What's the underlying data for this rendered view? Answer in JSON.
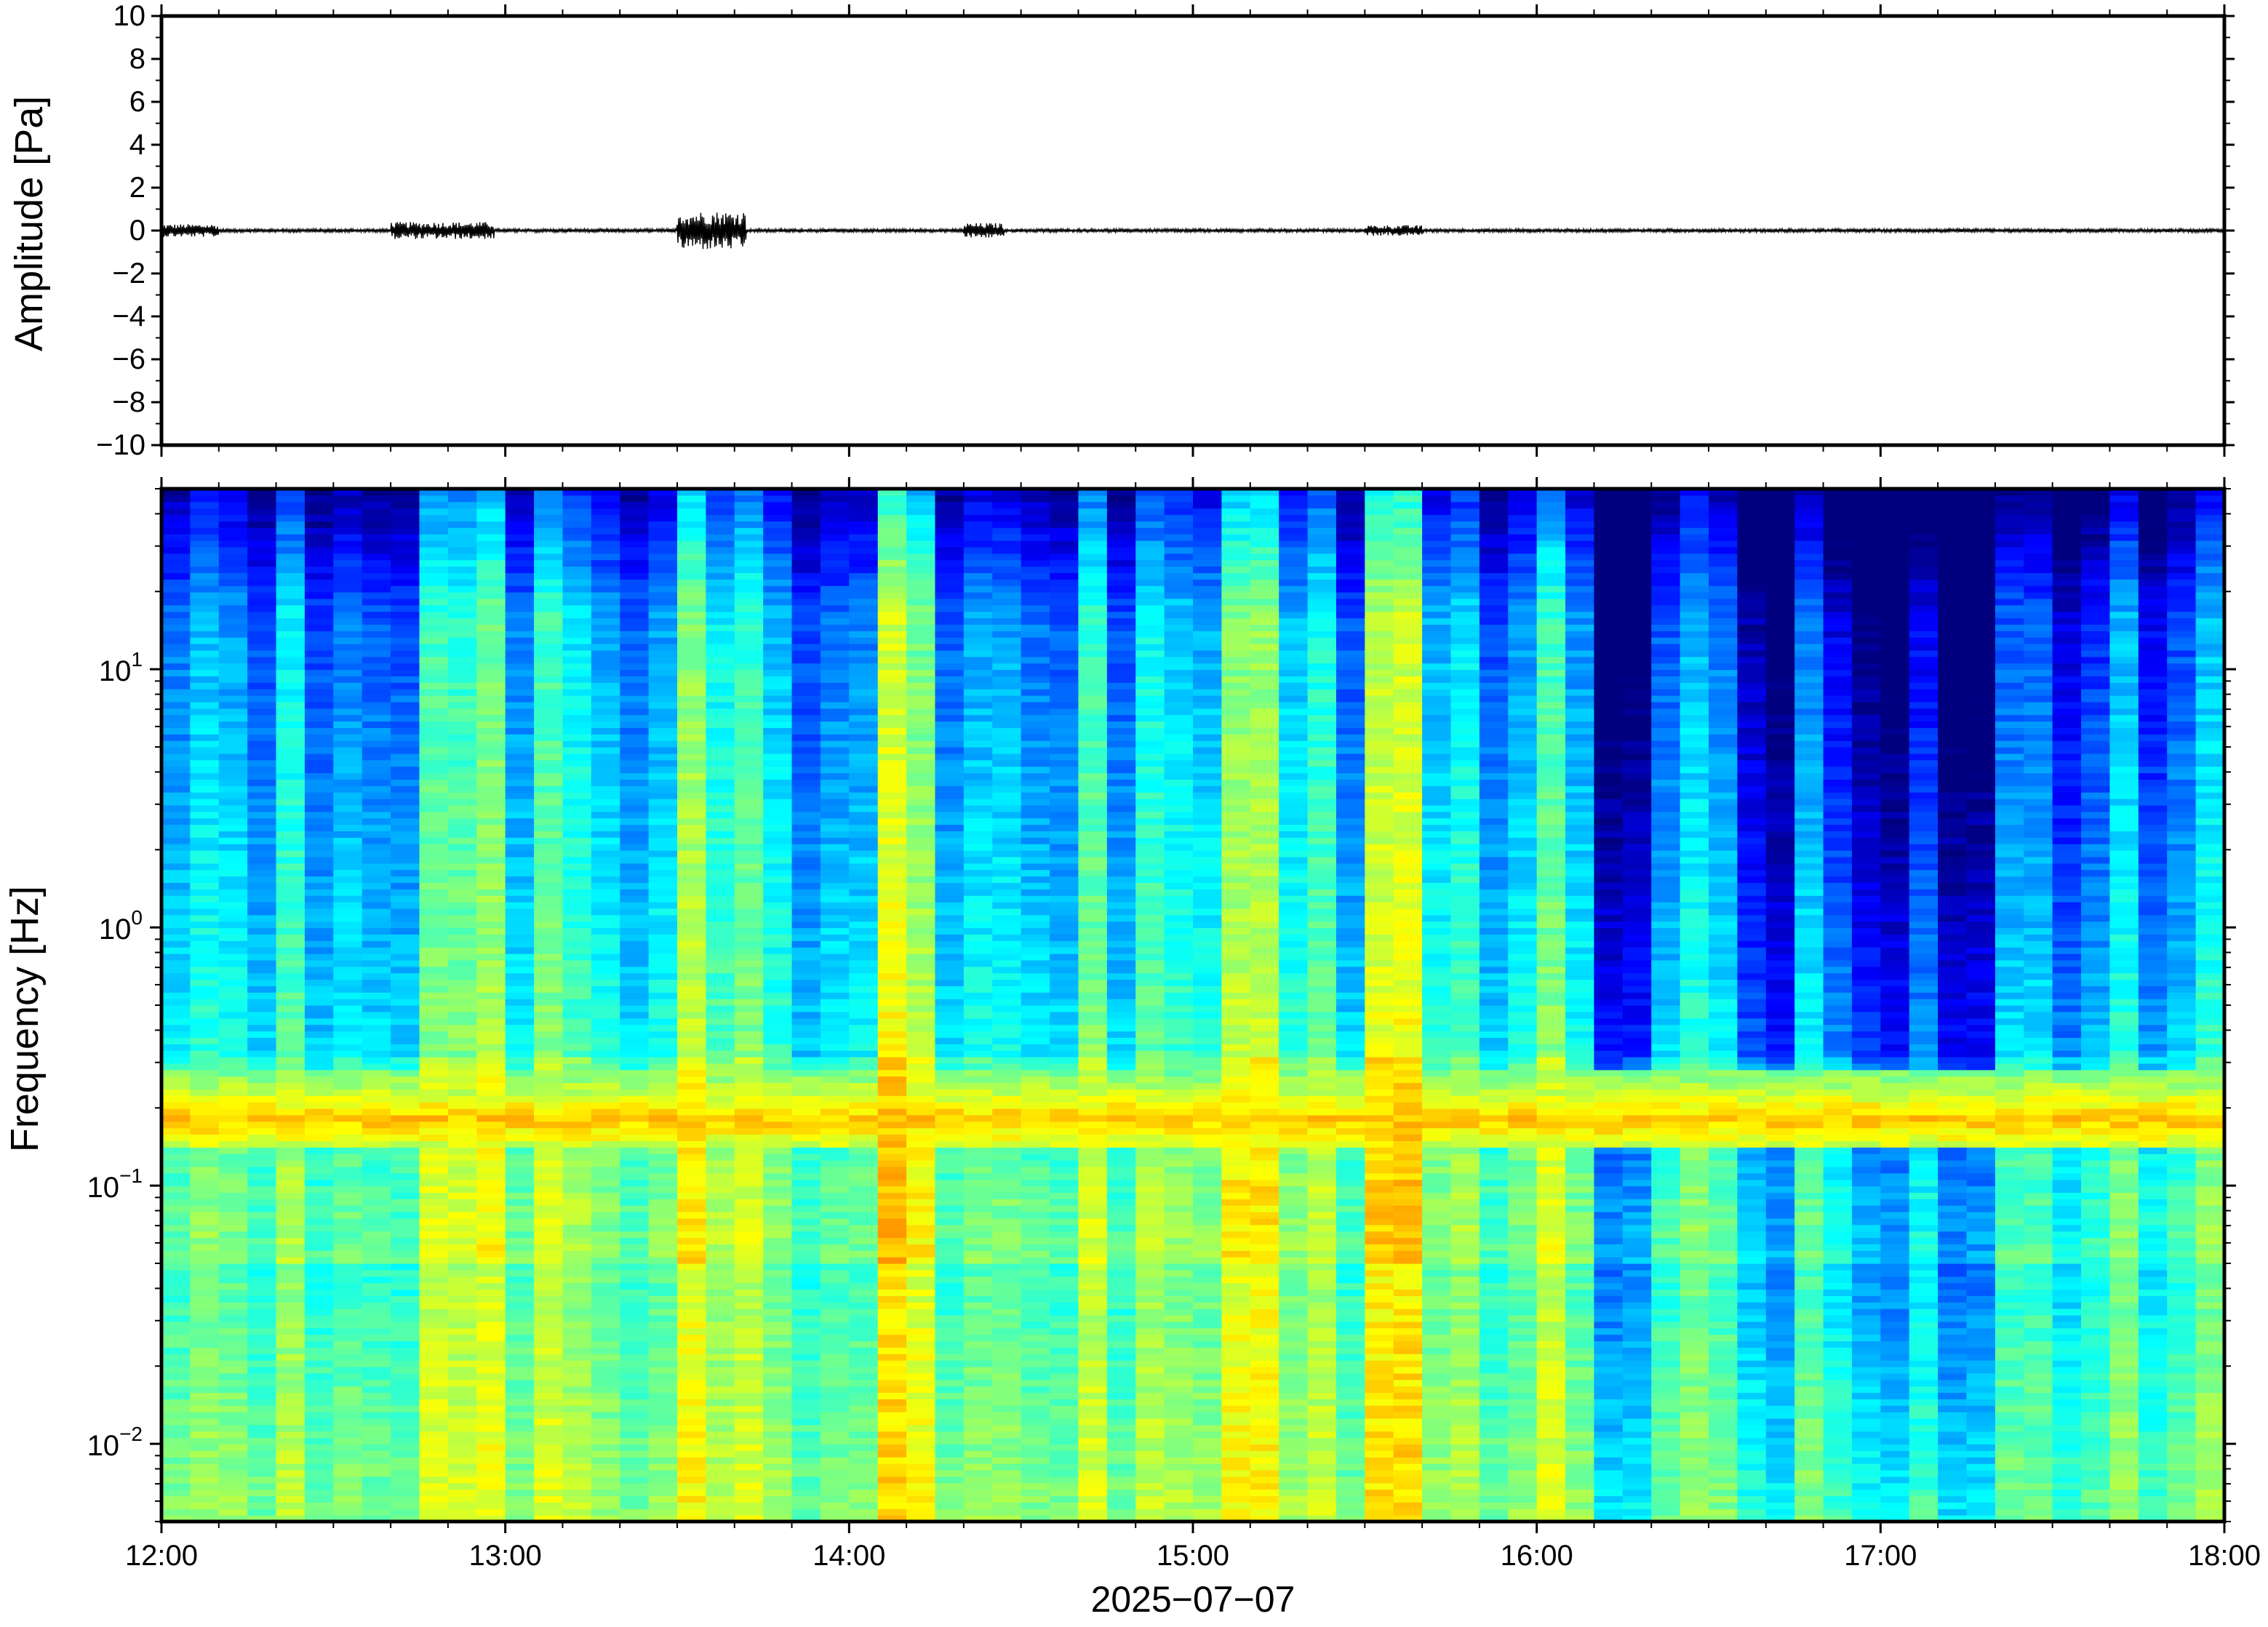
{
  "chart_data": [
    {
      "type": "line",
      "ylabel": "Amplitude [Pa]",
      "ylim": [
        -10,
        10
      ],
      "yticks": [
        10,
        8,
        6,
        4,
        2,
        0,
        -2,
        -4,
        -6,
        -8,
        -10
      ],
      "ytick_labels": [
        "10",
        "8",
        "6",
        "4",
        "2",
        "0",
        "−2",
        "−4",
        "−6",
        "−8",
        "−10"
      ],
      "xlim": [
        "2025-07-07 12:00",
        "2025-07-07 18:00"
      ],
      "grid": false,
      "series": [
        {
          "color": "#000000",
          "description_values": {
            "baseline": 0,
            "bursts": [
              {
                "start": "12:00",
                "end": "12:10",
                "amplitude": 0.3
              },
              {
                "start": "12:40",
                "end": "12:58",
                "amplitude": 0.4
              },
              {
                "start": "13:30",
                "end": "13:42",
                "amplitude": 0.9
              },
              {
                "start": "14:20",
                "end": "14:27",
                "amplitude": 0.35
              },
              {
                "start": "15:30",
                "end": "15:40",
                "amplitude": 0.25
              }
            ],
            "background_amplitude": 0.08
          }
        }
      ]
    },
    {
      "type": "heatmap",
      "ylabel": "Frequency [Hz]",
      "yscale": "log",
      "ylim": [
        0.005,
        50
      ],
      "yticks": [
        0.01,
        0.1,
        1,
        10
      ],
      "ytick_labels": [
        {
          "base": "10",
          "exp": "−2"
        },
        {
          "base": "10",
          "exp": "−1"
        },
        {
          "base": "10",
          "exp": "0"
        },
        {
          "base": "10",
          "exp": "1"
        }
      ],
      "xlabel": "2025−07−07",
      "xlim": [
        "12:00",
        "18:00"
      ],
      "xticks": [
        "12:00",
        "13:00",
        "14:00",
        "15:00",
        "16:00",
        "17:00",
        "18:00"
      ],
      "colormap": "jet",
      "colormap_colors": [
        "#00007f",
        "#0000ff",
        "#007fff",
        "#00ffff",
        "#7fff7f",
        "#ffff00",
        "#ff7f00",
        "#ff0000"
      ],
      "time_bins": 72,
      "features": {
        "microbarom_band_hz": [
          0.14,
          0.28
        ],
        "microbarom_peak_hz": 0.18,
        "quiet_period_after": "16:10",
        "high_energy_columns": [
          "12:55",
          "13:35",
          "14:10",
          "15:10",
          "15:35"
        ],
        "low_energy_columns": [
          "13:55",
          "16:15",
          "16:40",
          "17:00",
          "17:15"
        ]
      }
    }
  ]
}
